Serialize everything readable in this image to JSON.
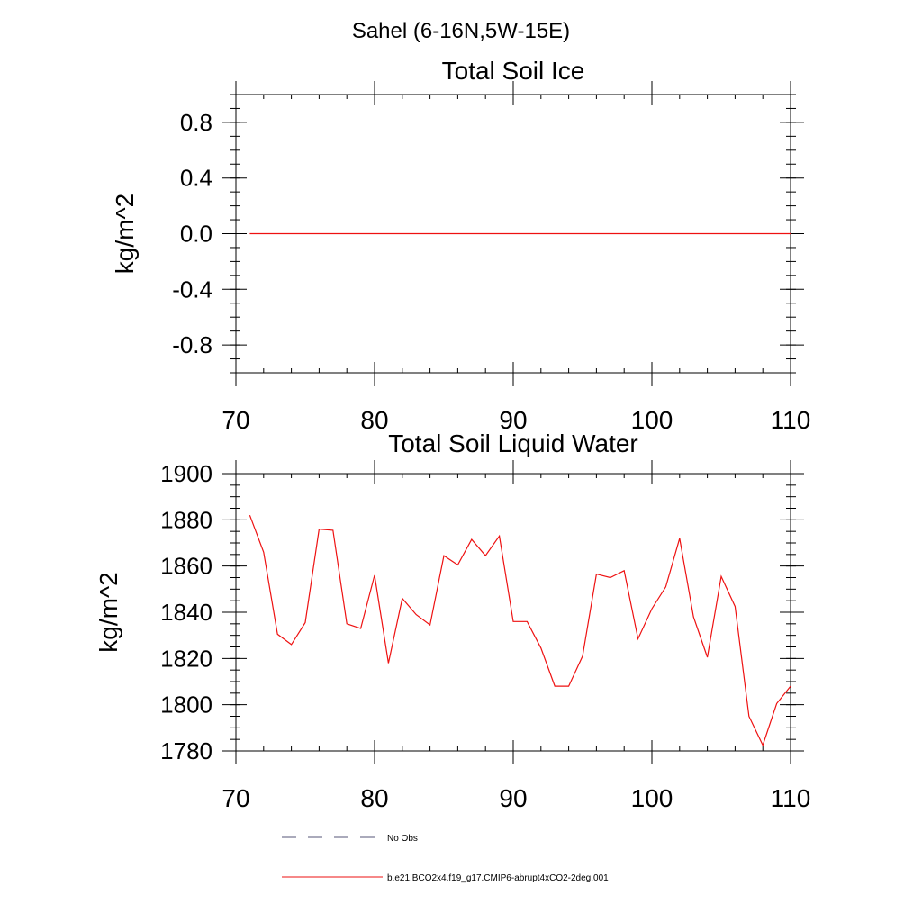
{
  "page_title": "Sahel (6-16N,5W-15E)",
  "legend": {
    "items": [
      {
        "label": "No Obs",
        "style": "dashed",
        "color": "#555577"
      },
      {
        "label": "b.e21.BCO2x4.f19_g17.CMIP6-abrupt4xCO2-2deg.001",
        "style": "solid",
        "color": "#ee1111"
      }
    ]
  },
  "chart_data": [
    {
      "type": "line",
      "title": "Total Soil Ice",
      "xlabel": "",
      "ylabel": "kg/m^2",
      "xlim": [
        70,
        110
      ],
      "ylim": [
        -1.0,
        1.0
      ],
      "xticks": [
        70,
        80,
        90,
        100,
        110
      ],
      "xtick_labels": [
        "70",
        "80",
        "90",
        "100",
        "110"
      ],
      "yticks": [
        -0.8,
        -0.4,
        0.0,
        0.4,
        0.8
      ],
      "ytick_labels": [
        "-0.8",
        "-0.4",
        "0.0",
        "0.4",
        "0.8"
      ],
      "grid": false,
      "series": [
        {
          "color": "#ee1111",
          "x": [
            71,
            72,
            73,
            74,
            75,
            76,
            77,
            78,
            79,
            80,
            81,
            82,
            83,
            84,
            85,
            86,
            87,
            88,
            89,
            90,
            91,
            92,
            93,
            94,
            95,
            96,
            97,
            98,
            99,
            100,
            101,
            102,
            103,
            104,
            105,
            106,
            107,
            108,
            109,
            110
          ],
          "values": [
            0,
            0,
            0,
            0,
            0,
            0,
            0,
            0,
            0,
            0,
            0,
            0,
            0,
            0,
            0,
            0,
            0,
            0,
            0,
            0,
            0,
            0,
            0,
            0,
            0,
            0,
            0,
            0,
            0,
            0,
            0,
            0,
            0,
            0,
            0,
            0,
            0,
            0,
            0,
            0
          ]
        }
      ]
    },
    {
      "type": "line",
      "title": "Total Soil Liquid Water",
      "xlabel": "",
      "ylabel": "kg/m^2",
      "xlim": [
        70,
        110
      ],
      "ylim": [
        1780,
        1900
      ],
      "xticks": [
        70,
        80,
        90,
        100,
        110
      ],
      "xtick_labels": [
        "70",
        "80",
        "90",
        "100",
        "110"
      ],
      "yticks": [
        1780,
        1800,
        1820,
        1840,
        1860,
        1880,
        1900
      ],
      "ytick_labels": [
        "1780",
        "1800",
        "1820",
        "1840",
        "1860",
        "1880",
        "1900"
      ],
      "grid": false,
      "series": [
        {
          "color": "#ee1111",
          "x": [
            71,
            72,
            73,
            74,
            75,
            76,
            77,
            78,
            79,
            80,
            81,
            82,
            83,
            84,
            85,
            86,
            87,
            88,
            89,
            90,
            91,
            92,
            93,
            94,
            95,
            96,
            97,
            98,
            99,
            100,
            101,
            102,
            103,
            104,
            105,
            106,
            107,
            108,
            109,
            110
          ],
          "values": [
            1882,
            1866,
            1830.5,
            1826,
            1835.5,
            1876,
            1875.5,
            1835,
            1833,
            1856,
            1818,
            1846,
            1839,
            1834.5,
            1864.5,
            1860.5,
            1871.5,
            1864.5,
            1873,
            1836,
            1836,
            1824.5,
            1808,
            1808,
            1821,
            1856.5,
            1855,
            1858,
            1828.5,
            1841.5,
            1851,
            1872,
            1838,
            1820.5,
            1855.5,
            1842.5,
            1795,
            1782.5,
            1800.5,
            1808
          ]
        }
      ]
    }
  ]
}
